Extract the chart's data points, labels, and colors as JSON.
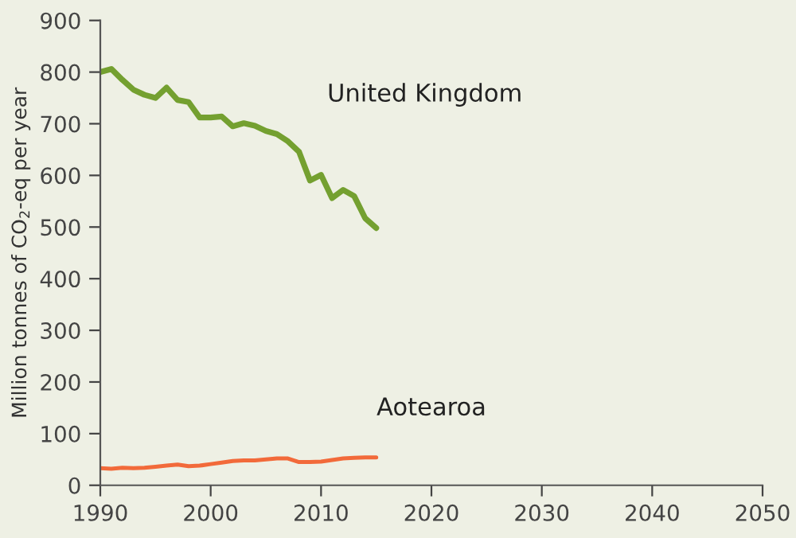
{
  "chart_data": {
    "type": "line",
    "ylabel": "Million tonnes of CO$_{2}$-eq per year",
    "x": [
      1990,
      1991,
      1992,
      1993,
      1994,
      1995,
      1996,
      1997,
      1998,
      1999,
      2000,
      2001,
      2002,
      2003,
      2004,
      2005,
      2006,
      2007,
      2008,
      2009,
      2010,
      2011,
      2012,
      2013,
      2014,
      2015
    ],
    "series": [
      {
        "name": "United Kingdom",
        "color": "#74a030",
        "values": [
          800,
          806,
          785,
          766,
          756,
          750,
          770,
          746,
          742,
          712,
          712,
          714,
          695,
          701,
          696,
          686,
          680,
          666,
          646,
          590,
          601,
          556,
          572,
          560,
          517,
          498
        ]
      },
      {
        "name": "Aotearoa",
        "color": "#f26a3a",
        "values": [
          33,
          32,
          34,
          33,
          34,
          36,
          38,
          40,
          37,
          38,
          41,
          44,
          47,
          48,
          48,
          50,
          52,
          52,
          45,
          45,
          46,
          49,
          52,
          53,
          54,
          54
        ]
      }
    ],
    "xlim": [
      1990,
      2050
    ],
    "xticks": [
      1990,
      2000,
      2010,
      2020,
      2030,
      2040,
      2050
    ],
    "ylim": [
      0,
      900
    ],
    "yticks": [
      0,
      100,
      200,
      300,
      400,
      500,
      600,
      700,
      800,
      900
    ],
    "grid": false,
    "legend": false
  }
}
